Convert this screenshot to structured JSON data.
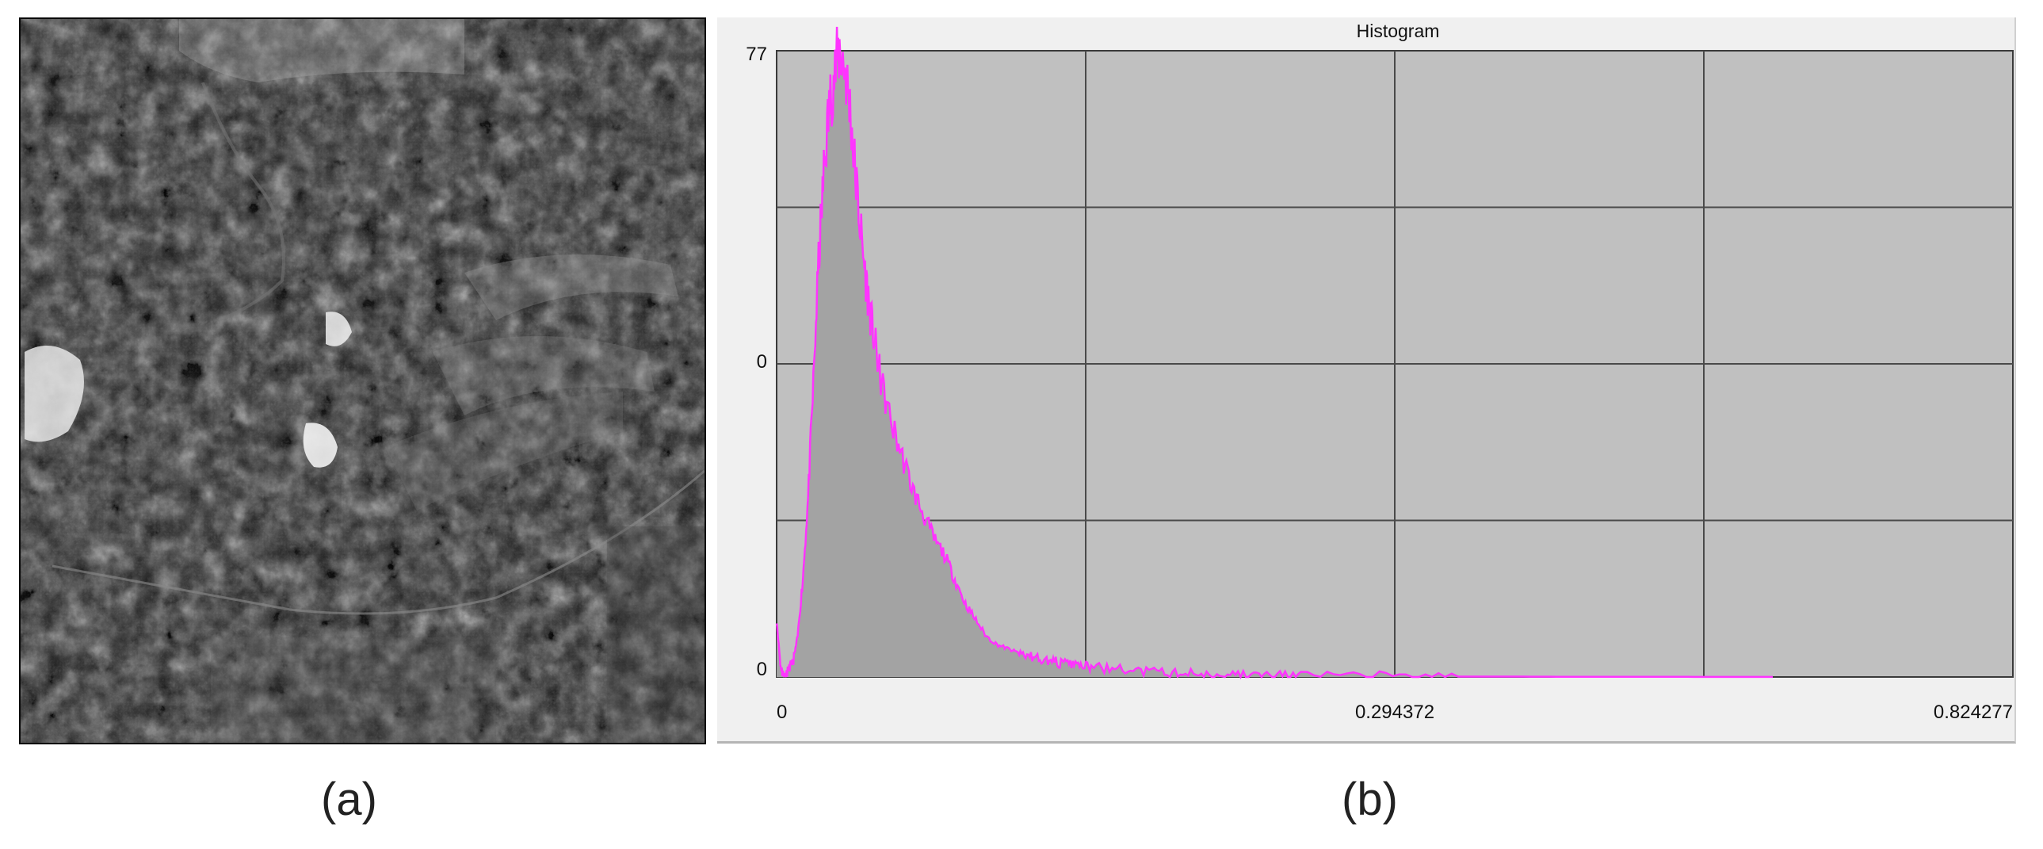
{
  "panels": {
    "a": {
      "label": "(a)"
    },
    "b": {
      "label": "(b)"
    }
  },
  "satellite_image": {
    "description_icon": "grayscale-satellite-terrain-image"
  },
  "chart_data": {
    "type": "area",
    "title": "Histogram",
    "x_ticks": [
      "0",
      "0.294372",
      "0.824277"
    ],
    "y_ticks": [
      "77",
      "0",
      "0"
    ],
    "xlim": [
      0,
      1.179
    ],
    "ylim": [
      0,
      77
    ],
    "grid": true,
    "colors": {
      "line": "#ff33ff",
      "fill": "#a3a3a3",
      "plot_bg": "#c0c0c0",
      "grid": "#4a4a4a"
    },
    "x": [
      0,
      0.004,
      0.008,
      0.012,
      0.016,
      0.02,
      0.025,
      0.03,
      0.035,
      0.04,
      0.045,
      0.05,
      0.055,
      0.06,
      0.065,
      0.07,
      0.075,
      0.08,
      0.085,
      0.09,
      0.095,
      0.1,
      0.11,
      0.12,
      0.13,
      0.14,
      0.15,
      0.16,
      0.17,
      0.18,
      0.19,
      0.2,
      0.21,
      0.22,
      0.23,
      0.24,
      0.25,
      0.26,
      0.27,
      0.28,
      0.29,
      0.3,
      0.32,
      0.34,
      0.36,
      0.38,
      0.4,
      0.42,
      0.44,
      0.46,
      0.48,
      0.5,
      0.55,
      0.6,
      0.65,
      0.7,
      0.75,
      0.8,
      0.85,
      0.9,
      0.95
    ],
    "values": [
      7,
      1,
      0,
      1,
      2,
      5,
      12,
      22,
      36,
      51,
      62,
      70,
      74,
      77,
      75,
      70,
      62,
      55,
      49,
      44,
      40,
      36,
      31,
      27,
      23,
      20,
      17,
      15,
      12,
      9,
      7,
      5,
      4,
      3.5,
      3,
      2.6,
      2.3,
      2,
      1.8,
      1.6,
      1.4,
      1.2,
      1.0,
      0.8,
      0.6,
      0.5,
      0.4,
      0.3,
      0.25,
      0.2,
      0.2,
      0.15,
      0.12,
      0.1,
      0.05,
      0.05,
      0.03,
      0.02,
      0.02,
      0.01,
      0.01
    ]
  }
}
